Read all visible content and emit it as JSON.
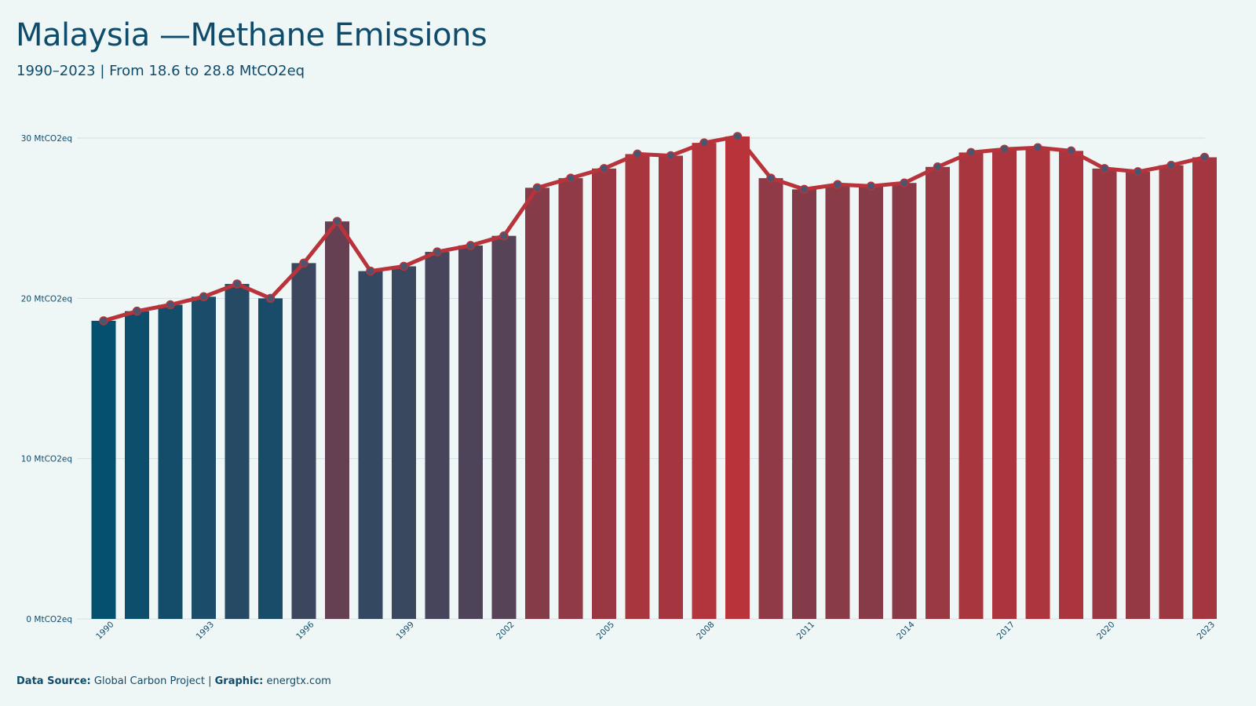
{
  "title": "Malaysia —Methane Emissions",
  "subtitle": "1990–2023 | From 18.6 to 28.8 MtCO2eq",
  "footer": {
    "source_label": "Data Source:",
    "source_value": "Global Carbon Project",
    "separator": " | ",
    "graphic_label": "Graphic:",
    "graphic_value": "energtx.com"
  },
  "colors": {
    "background": "#eff6f6",
    "title": "#0f4c6b",
    "line": "#b8333a",
    "low_bar": "#03506f",
    "high_bar": "#b8333a",
    "grid": "#d6dfe1"
  },
  "chart_data": {
    "type": "bar",
    "x": [
      1990,
      1991,
      1992,
      1993,
      1994,
      1995,
      1996,
      1997,
      1998,
      1999,
      2000,
      2001,
      2002,
      2003,
      2004,
      2005,
      2006,
      2007,
      2008,
      2009,
      2010,
      2011,
      2012,
      2013,
      2014,
      2015,
      2016,
      2017,
      2018,
      2019,
      2020,
      2021,
      2022,
      2023
    ],
    "values": [
      18.6,
      19.2,
      19.6,
      20.1,
      20.9,
      20.0,
      22.2,
      24.8,
      21.7,
      22.0,
      22.9,
      23.3,
      23.9,
      26.9,
      27.5,
      28.1,
      29.0,
      28.9,
      29.7,
      30.1,
      27.5,
      26.8,
      27.1,
      27.0,
      27.2,
      28.2,
      29.1,
      29.3,
      29.4,
      29.2,
      28.1,
      27.9,
      28.3,
      28.8
    ],
    "overlay": "line with markers",
    "ylim": [
      0,
      30
    ],
    "yticks": [
      0,
      10,
      20,
      30
    ],
    "ytick_labels": [
      "0 MtCO2eq",
      "10 MtCO2eq",
      "20 MtCO2eq",
      "30 MtCO2eq"
    ],
    "xtick_labels": [
      "1990",
      "1993",
      "1996",
      "1999",
      "2002",
      "2005",
      "2008",
      "2011",
      "2014",
      "2017",
      "2020",
      "2023"
    ],
    "grid": true,
    "legend": "none"
  }
}
